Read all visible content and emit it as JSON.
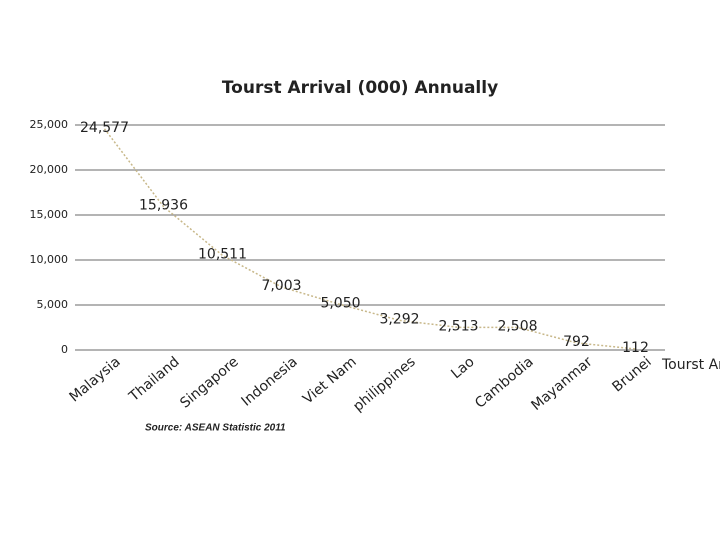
{
  "chart_data": {
    "type": "line",
    "title": "Tourst Arrival (000) Annually",
    "categories": [
      "Malaysia",
      "Thailand",
      "Singapore",
      "Indonesia",
      "Viet Nam",
      "philippines",
      "Lao",
      "Cambodia",
      "Mayanmar",
      "Brunei"
    ],
    "series": [
      {
        "name": "Tourst Arrival (000) Annually",
        "color": "#c8b88a",
        "values": [
          24577,
          15936,
          10511,
          7003,
          5050,
          3292,
          2513,
          2508,
          792,
          112
        ],
        "value_labels": [
          "24,577",
          "15,936",
          "10,511",
          "7,003",
          "5,050",
          "3,292",
          "2,513",
          "2,508",
          "792",
          "112"
        ]
      }
    ],
    "ylim": [
      0,
      25000
    ],
    "yticks": [
      0,
      {
        "value": 5000,
        "label": "5,000"
      },
      {
        "value": 10000,
        "label": "10,000"
      },
      {
        "value": 15000,
        "label": "15,000"
      },
      {
        "value": 20000,
        "label": "20,000"
      },
      {
        "value": 25000,
        "label": "25,000"
      }
    ],
    "grid": true,
    "legend": "right",
    "source": "Source: ASEAN Statistic  2011"
  }
}
